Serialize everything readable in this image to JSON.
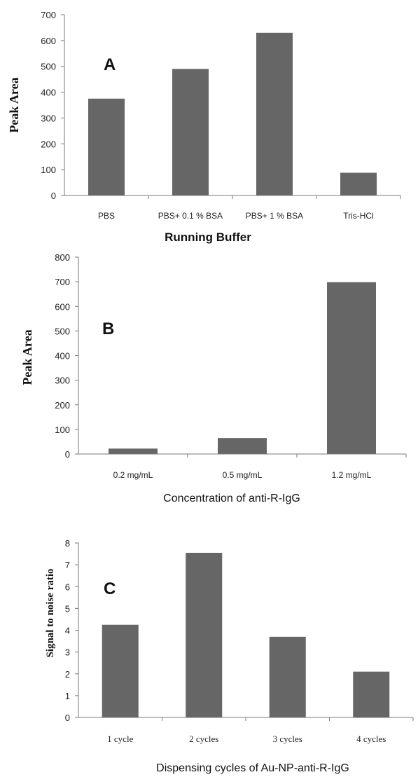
{
  "colors": {
    "bar": "#666666",
    "axis": "#7a7a7a",
    "text": "#111111"
  },
  "chart_data": [
    {
      "type": "bar",
      "panel_label": "A",
      "categories": [
        "PBS",
        "PBS+ 0.1 % BSA",
        "PBS+ 1 % BSA",
        "Tris-HCl"
      ],
      "values": [
        375,
        490,
        630,
        88
      ],
      "ylabel": "Peak Area",
      "xlabel": "Running Buffer",
      "ylim": [
        0,
        700
      ],
      "yticks": [
        0,
        100,
        200,
        300,
        400,
        500,
        600,
        700
      ],
      "grid": false
    },
    {
      "type": "bar",
      "panel_label": "B",
      "categories": [
        "0.2 mg/mL",
        "0.5 mg/mL",
        "1.2 mg/mL"
      ],
      "values": [
        22,
        65,
        698
      ],
      "ylabel": "Peak Area",
      "xlabel": "Concentration of anti-R-IgG",
      "ylim": [
        0,
        800
      ],
      "yticks": [
        0,
        100,
        200,
        300,
        400,
        500,
        600,
        700,
        800
      ],
      "grid": false
    },
    {
      "type": "bar",
      "panel_label": "C",
      "categories": [
        "1 cycle",
        "2 cycles",
        "3 cycles",
        "4 cycles"
      ],
      "values": [
        4.25,
        7.55,
        3.7,
        2.1
      ],
      "ylabel": "Signal to noise ratio",
      "xlabel": "Dispensing cycles of Au-NP-anti-R-IgG",
      "ylim": [
        0,
        8
      ],
      "yticks": [
        0,
        1,
        2,
        3,
        4,
        5,
        6,
        7,
        8
      ],
      "grid": false
    }
  ]
}
